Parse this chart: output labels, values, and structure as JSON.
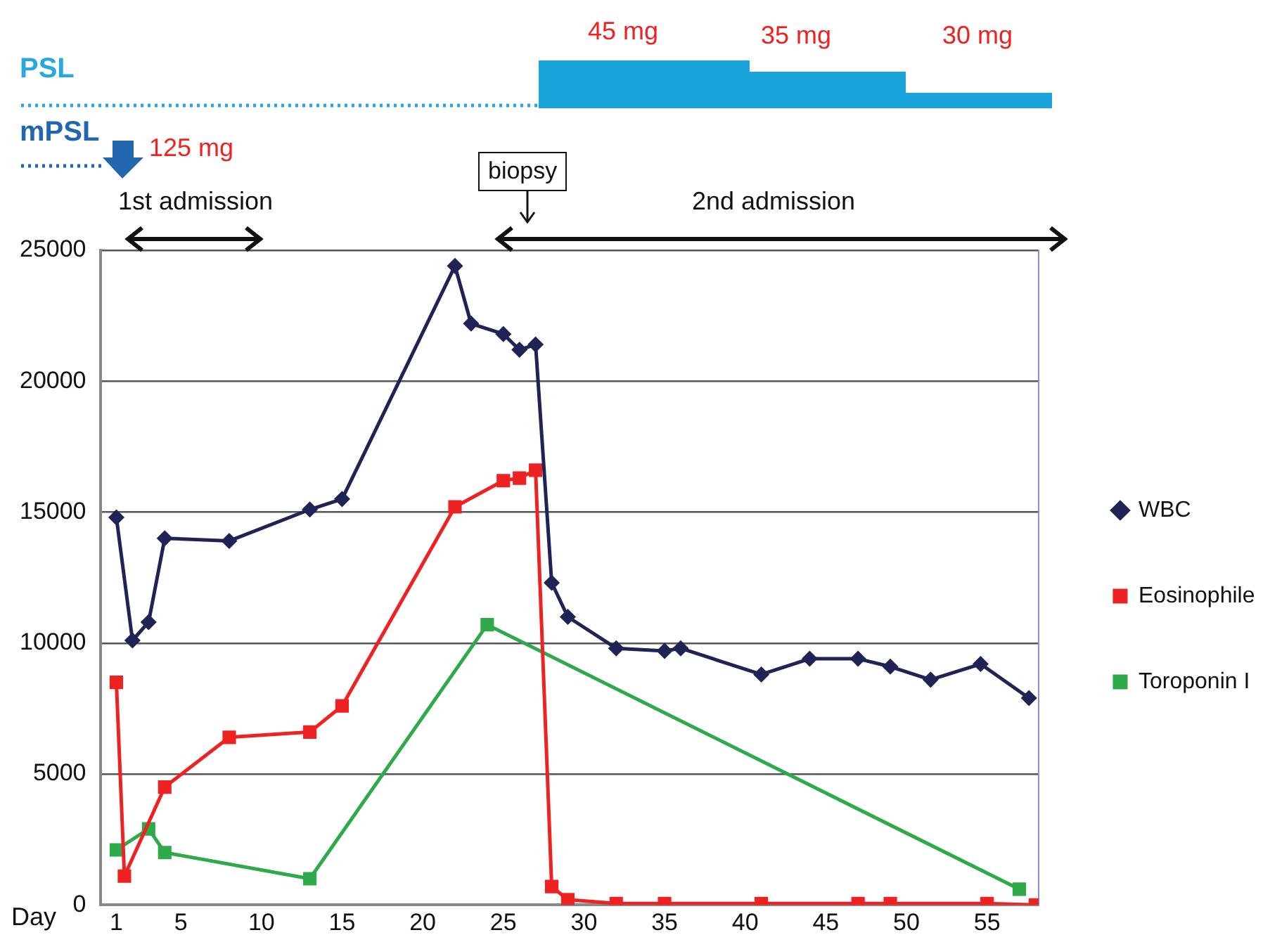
{
  "chart_data": {
    "type": "line",
    "xlabel": "Day",
    "xlim": [
      0,
      58.2
    ],
    "xticks": [
      1,
      5,
      10,
      15,
      20,
      25,
      30,
      35,
      40,
      45,
      50,
      55
    ],
    "ylim": [
      0,
      25000
    ],
    "yticks": [
      0,
      5000,
      10000,
      15000,
      20000,
      25000
    ],
    "grid": "y",
    "legend": "right",
    "line_style": "solid",
    "series": [
      {
        "name": "WBC",
        "color": "#1f2355",
        "marker": "diamond",
        "x": [
          1,
          2,
          3,
          4,
          8,
          13,
          15,
          22,
          23,
          25,
          26,
          27,
          28,
          29,
          32,
          35,
          36,
          41,
          44,
          47,
          49,
          51.5,
          54.6,
          57.6
        ],
        "values": [
          14800,
          10100,
          10800,
          14000,
          13900,
          15100,
          15500,
          24400,
          22200,
          21800,
          21200,
          21400,
          12300,
          11000,
          9800,
          9700,
          9800,
          8800,
          9400,
          9400,
          9100,
          8600,
          9200,
          7900
        ]
      },
      {
        "name": "Eosinophile",
        "color": "#ee2222",
        "marker": "square",
        "x": [
          1,
          1.5,
          4,
          8,
          13,
          15,
          22,
          25,
          26,
          27,
          28,
          29,
          32,
          35,
          41,
          47,
          49,
          55,
          58
        ],
        "values": [
          8500,
          1100,
          4500,
          6400,
          6600,
          7600,
          15200,
          16200,
          16300,
          16600,
          700,
          200,
          50,
          50,
          50,
          50,
          50,
          50,
          0
        ]
      },
      {
        "name": "Toroponin I",
        "color": "#2eaa4a",
        "marker": "square",
        "x": [
          1,
          3,
          4,
          13,
          24,
          57
        ],
        "values": [
          2100,
          2900,
          2000,
          1000,
          10700,
          600
        ]
      }
    ],
    "annotations": [
      "PSL",
      "45 mg",
      "35 mg",
      "30 mg",
      "mPSL",
      "125 mg",
      "1st admission",
      "biopsy",
      "2nd admission"
    ]
  }
}
